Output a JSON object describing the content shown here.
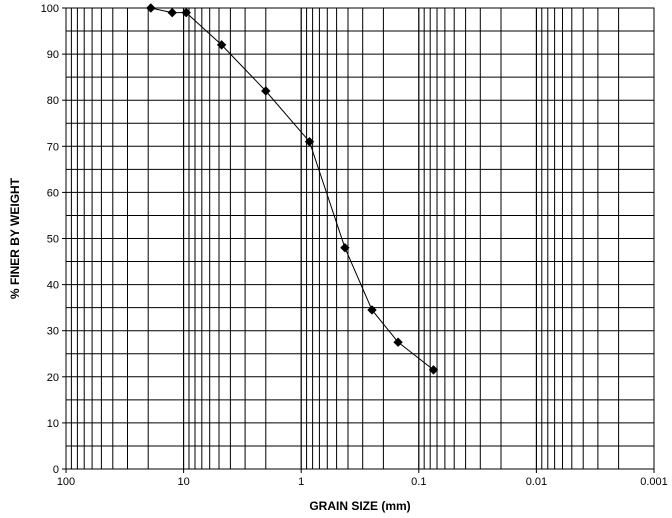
{
  "chart_data": {
    "type": "scatter",
    "title": "",
    "xlabel": "GRAIN SIZE (mm)",
    "ylabel": "% FINER BY WEIGHT",
    "x_scale": "log",
    "x_reversed": true,
    "xlim": [
      100,
      0.001
    ],
    "ylim": [
      0,
      100
    ],
    "x_tick_labels": [
      "100",
      "10",
      "1",
      "0.1",
      "0.01",
      "0.001"
    ],
    "y_tick_labels": [
      "0",
      "10",
      "20",
      "30",
      "40",
      "50",
      "60",
      "70",
      "80",
      "90",
      "100"
    ],
    "grid": true,
    "line_connected": true,
    "marker": "diamond",
    "color": "#000000",
    "series": [
      {
        "x": [
          19.0,
          12.5,
          9.5,
          4.75,
          2.0,
          0.85,
          0.425,
          0.25,
          0.15,
          0.075
        ],
        "y": [
          100,
          99,
          99,
          92,
          82,
          71,
          48,
          34.5,
          27.5,
          21.5
        ]
      }
    ]
  }
}
